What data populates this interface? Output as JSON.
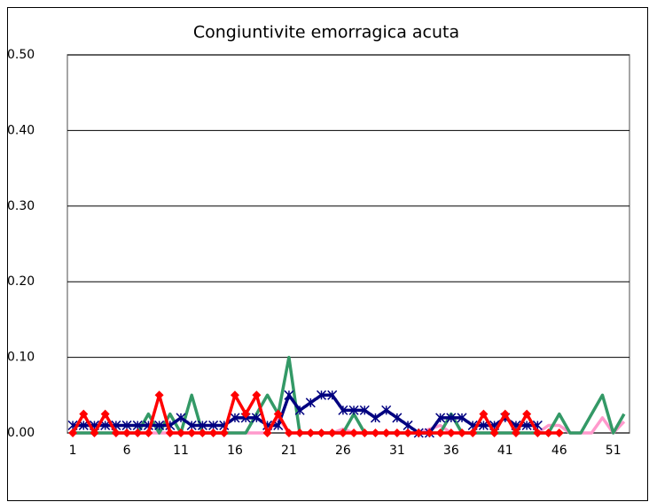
{
  "chart_data": {
    "type": "line",
    "title": "Congiuntivite emorragica acuta",
    "categories": [
      "1",
      null,
      null,
      null,
      null,
      "6",
      null,
      null,
      null,
      null,
      "11",
      null,
      null,
      null,
      null,
      "16",
      null,
      null,
      null,
      null,
      "21",
      null,
      null,
      null,
      null,
      "26",
      null,
      null,
      null,
      null,
      "31",
      null,
      null,
      null,
      null,
      "36",
      null,
      null,
      null,
      null,
      "41",
      null,
      null,
      null,
      null,
      "46",
      null,
      null,
      null,
      null,
      "51",
      null
    ],
    "ylim": [
      0,
      0.5
    ],
    "yticks": [
      {
        "value": 0,
        "label": "0.00"
      },
      {
        "value": 0.1,
        "label": "0.10"
      },
      {
        "value": 0.2,
        "label": "0.20"
      },
      {
        "value": 0.3,
        "label": "0.30"
      },
      {
        "value": 0.4,
        "label": "0.40"
      },
      {
        "value": 0.5,
        "label": "0.50"
      }
    ],
    "grid": true,
    "series": [
      {
        "color": "#ff99cc",
        "marker": "none",
        "values": [
          0,
          0,
          0,
          0,
          0,
          0,
          0,
          0,
          0,
          0,
          0,
          0,
          0,
          0,
          0,
          0,
          0,
          0,
          0,
          0.02,
          0,
          0,
          0,
          0,
          0,
          0.005,
          0,
          0,
          0,
          0,
          0,
          0,
          0,
          0.005,
          0.01,
          0,
          0,
          0,
          0,
          0,
          0,
          0,
          0,
          0,
          0.01,
          0.01,
          0,
          0,
          0,
          0.02,
          0,
          0.015
        ]
      },
      {
        "color": "#339966",
        "marker": "none",
        "values": [
          0,
          0,
          0,
          0,
          0,
          0,
          0,
          0.025,
          0,
          0.025,
          0,
          0.05,
          0,
          0,
          0,
          0,
          0,
          0.025,
          0.05,
          0.025,
          0.1,
          0,
          0,
          0,
          0,
          0,
          0.025,
          0,
          0,
          0,
          0,
          0,
          0,
          0,
          0,
          0.025,
          0,
          0,
          0,
          0,
          0,
          0,
          0,
          0,
          0,
          0.025,
          0,
          0,
          0.025,
          0.05,
          0,
          0.025
        ]
      },
      {
        "color": "#000080",
        "marker": "asterisk",
        "values": [
          0.01,
          0.01,
          0.01,
          0.01,
          0.01,
          0.01,
          0.01,
          0.01,
          0.01,
          0.01,
          0.02,
          0.01,
          0.01,
          0.01,
          0.01,
          0.02,
          0.02,
          0.02,
          0.01,
          0.01,
          0.05,
          0.03,
          0.04,
          0.05,
          0.05,
          0.03,
          0.03,
          0.03,
          0.02,
          0.03,
          0.02,
          0.01,
          0,
          0,
          0.02,
          0.02,
          0.02,
          0.01,
          0.01,
          0.01,
          0.02,
          0.01,
          0.01,
          0.01,
          null,
          null,
          null,
          null,
          null,
          null,
          null,
          null
        ]
      },
      {
        "color": "#ff0000",
        "marker": "diamond",
        "values": [
          0,
          0.025,
          0,
          0.025,
          0,
          0,
          0,
          0,
          0.05,
          0,
          0,
          0,
          0,
          0,
          0,
          0.05,
          0.025,
          0.05,
          0,
          0.025,
          0,
          0,
          0,
          0,
          0,
          0,
          0,
          0,
          0,
          0,
          0,
          0,
          0,
          0,
          0,
          0,
          0,
          0,
          0.025,
          0,
          0.025,
          0,
          0.025,
          0,
          0,
          0,
          null,
          null,
          null,
          null,
          null,
          null
        ]
      }
    ]
  }
}
